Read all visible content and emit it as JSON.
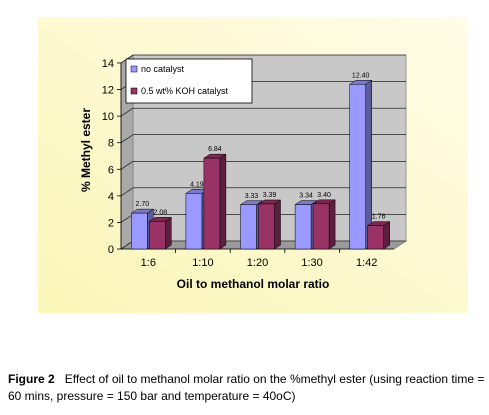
{
  "chart_data": {
    "type": "bar",
    "style": "3d-clustered-column",
    "categories": [
      "1:6",
      "1:10",
      "1:20",
      "1:30",
      "1:42"
    ],
    "series": [
      {
        "name": "no catalyst",
        "color": "#9999ff",
        "values": [
          2.7,
          4.19,
          3.33,
          3.34,
          12.4
        ],
        "labels": [
          "2.70",
          "4.19",
          "3.33",
          "3.34",
          "12.40"
        ]
      },
      {
        "name": "0.5 wt% KOH catalyst",
        "color": "#993366",
        "values": [
          2.08,
          6.84,
          3.39,
          3.4,
          1.76
        ],
        "labels": [
          "2.08",
          "6.84",
          "3.39",
          "3.40",
          "1.76"
        ]
      }
    ],
    "xlabel": "Oil to methanol molar ratio",
    "ylabel": "% Methyl ester",
    "ylim": [
      0,
      14
    ],
    "yticks": [
      "0",
      "2",
      "4",
      "6",
      "8",
      "10",
      "12",
      "14"
    ],
    "grid": true,
    "legend_position": "top-left",
    "background_colors": [
      "#fbf6b8",
      "#fffce8"
    ]
  },
  "caption": {
    "label": "Figure 2",
    "text": "Effect of oil to methanol molar ratio on the %methyl ester (using reaction time = 60 mins, pressure = 150 bar and temperature = 40oC)"
  }
}
